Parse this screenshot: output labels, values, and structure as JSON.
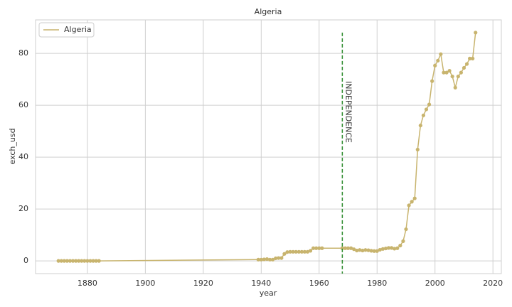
{
  "chart_data": {
    "type": "line",
    "title": "Algeria",
    "xlabel": "year",
    "ylabel": "exch_usd",
    "x": [
      1870,
      1871,
      1872,
      1873,
      1874,
      1875,
      1876,
      1877,
      1878,
      1879,
      1880,
      1881,
      1882,
      1883,
      1884,
      1939,
      1940,
      1941,
      1942,
      1943,
      1944,
      1945,
      1946,
      1947,
      1948,
      1949,
      1950,
      1951,
      1952,
      1953,
      1954,
      1955,
      1956,
      1957,
      1958,
      1959,
      1960,
      1961,
      1968,
      1969,
      1970,
      1971,
      1972,
      1973,
      1974,
      1975,
      1976,
      1977,
      1978,
      1979,
      1980,
      1981,
      1982,
      1983,
      1984,
      1985,
      1986,
      1987,
      1988,
      1989,
      1990,
      1991,
      1992,
      1993,
      1994,
      1995,
      1996,
      1997,
      1998,
      1999,
      2000,
      2001,
      2002,
      2003,
      2004,
      2005,
      2006,
      2007,
      2008,
      2009,
      2010,
      2011,
      2012,
      2013,
      2014
    ],
    "series": [
      {
        "name": "Algeria",
        "color": "#c8b46e",
        "values": [
          0,
          0,
          0,
          0,
          0,
          0,
          0,
          0,
          0,
          0,
          0,
          0,
          0,
          0,
          0,
          0.5,
          0.5,
          0.6,
          0.7,
          0.5,
          0.5,
          1.0,
          1.1,
          1.1,
          2.7,
          3.4,
          3.5,
          3.5,
          3.5,
          3.5,
          3.5,
          3.5,
          3.5,
          3.9,
          4.9,
          4.9,
          4.9,
          4.9,
          4.9,
          4.9,
          4.9,
          4.9,
          4.5,
          4.0,
          4.2,
          4.0,
          4.2,
          4.1,
          3.9,
          3.8,
          3.8,
          4.3,
          4.6,
          4.8,
          5.0,
          5.0,
          4.7,
          4.9,
          5.9,
          7.6,
          12.2,
          21.4,
          22.8,
          24.1,
          42.9,
          52.2,
          56.1,
          58.4,
          60.3,
          69.3,
          75.3,
          77.2,
          79.7,
          72.6,
          72.6,
          73.3,
          71.1,
          66.8,
          71.1,
          72.6,
          74.4,
          75.9,
          78.0,
          78.0,
          88.0
        ]
      }
    ],
    "annotation": {
      "text": "INDEPENDENCE",
      "x": 1968,
      "color": "#2a8a2a"
    },
    "xlim": [
      1862.1,
      2022.9
    ],
    "xticks": [
      1880,
      1900,
      1920,
      1940,
      1960,
      1980,
      2000,
      2020
    ],
    "ylim": [
      -4.9,
      92.9
    ],
    "yticks": [
      0,
      20,
      40,
      60,
      80
    ],
    "grid": true,
    "legend": "upper left"
  }
}
